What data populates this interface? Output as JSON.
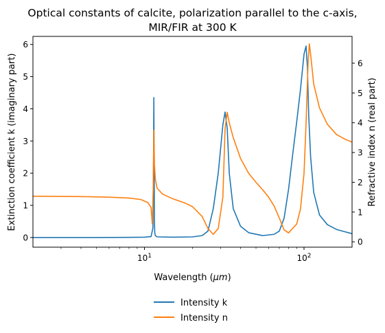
{
  "chart_data": {
    "type": "line",
    "title_line1": "Optical constants of calcite, polarization parallel to the c-axis,",
    "title_line2": "MIR/FIR at 300 K",
    "xlabel": "Wavelength ($\\mu m$)",
    "ylabel_left": "Extinction coefficient k (imaginary part)",
    "ylabel_right": "Refractive index n (real part)",
    "xscale": "log",
    "xlim": [
      2,
      200
    ],
    "ylim_left": [
      -0.3,
      6.25
    ],
    "ylim_right": [
      -0.18,
      6.9
    ],
    "x_ticks": [
      10,
      100
    ],
    "x_tick_labels": [
      "10^1",
      "10^2"
    ],
    "y_ticks_left": [
      0,
      1,
      2,
      3,
      4,
      5,
      6
    ],
    "y_tick_labels_left": [
      "0",
      "1",
      "2",
      "3",
      "4",
      "5",
      "6"
    ],
    "y_ticks_right": [
      0,
      1,
      2,
      3,
      4,
      5,
      6
    ],
    "y_tick_labels_right": [
      "0",
      "1",
      "2",
      "3",
      "4",
      "5",
      "6"
    ],
    "grid": false,
    "legend_position": "bottom-center, below plot",
    "series": [
      {
        "name": "Intensity k",
        "axis": "left",
        "color": "#1f77b4",
        "x": [
          2,
          5,
          8,
          10,
          11,
          11.3,
          11.4,
          11.45,
          11.5,
          11.55,
          11.6,
          11.7,
          12,
          15,
          20,
          23,
          25,
          27,
          29,
          31,
          32,
          33,
          34,
          36,
          40,
          45,
          55,
          65,
          70,
          75,
          80,
          85,
          90,
          95,
          100,
          103,
          105,
          107,
          110,
          115,
          125,
          140,
          160,
          180,
          200
        ],
        "y": [
          0.0,
          0.0,
          0.005,
          0.01,
          0.03,
          0.3,
          2.5,
          4.35,
          2.2,
          0.5,
          0.15,
          0.06,
          0.02,
          0.01,
          0.02,
          0.06,
          0.2,
          0.9,
          2.0,
          3.5,
          3.9,
          3.4,
          2.0,
          0.9,
          0.35,
          0.15,
          0.06,
          0.1,
          0.2,
          0.6,
          1.5,
          2.6,
          3.6,
          4.6,
          5.7,
          5.95,
          5.3,
          3.8,
          2.5,
          1.4,
          0.7,
          0.4,
          0.25,
          0.18,
          0.12
        ]
      },
      {
        "name": "Intensity n",
        "axis": "right",
        "color": "#ff7f0e",
        "x": [
          2,
          4,
          6,
          8,
          9.5,
          10.5,
          11.0,
          11.2,
          11.35,
          11.45,
          11.55,
          11.7,
          12,
          13,
          15,
          18,
          20,
          23,
          25,
          27,
          29,
          31,
          32,
          33,
          34,
          36,
          40,
          45,
          50,
          55,
          60,
          65,
          70,
          75,
          80,
          90,
          95,
          100,
          103,
          106,
          108,
          110,
          115,
          125,
          140,
          160,
          180,
          200
        ],
        "y": [
          1.53,
          1.52,
          1.5,
          1.47,
          1.42,
          1.32,
          1.15,
          0.6,
          1.8,
          3.75,
          2.6,
          2.1,
          1.8,
          1.6,
          1.45,
          1.3,
          1.18,
          0.85,
          0.45,
          0.25,
          0.45,
          1.5,
          3.8,
          4.35,
          4.0,
          3.5,
          2.8,
          2.3,
          2.0,
          1.75,
          1.5,
          1.2,
          0.8,
          0.4,
          0.3,
          0.6,
          1.1,
          2.3,
          4.0,
          6.0,
          6.65,
          6.3,
          5.3,
          4.5,
          3.95,
          3.6,
          3.45,
          3.35
        ]
      }
    ]
  }
}
